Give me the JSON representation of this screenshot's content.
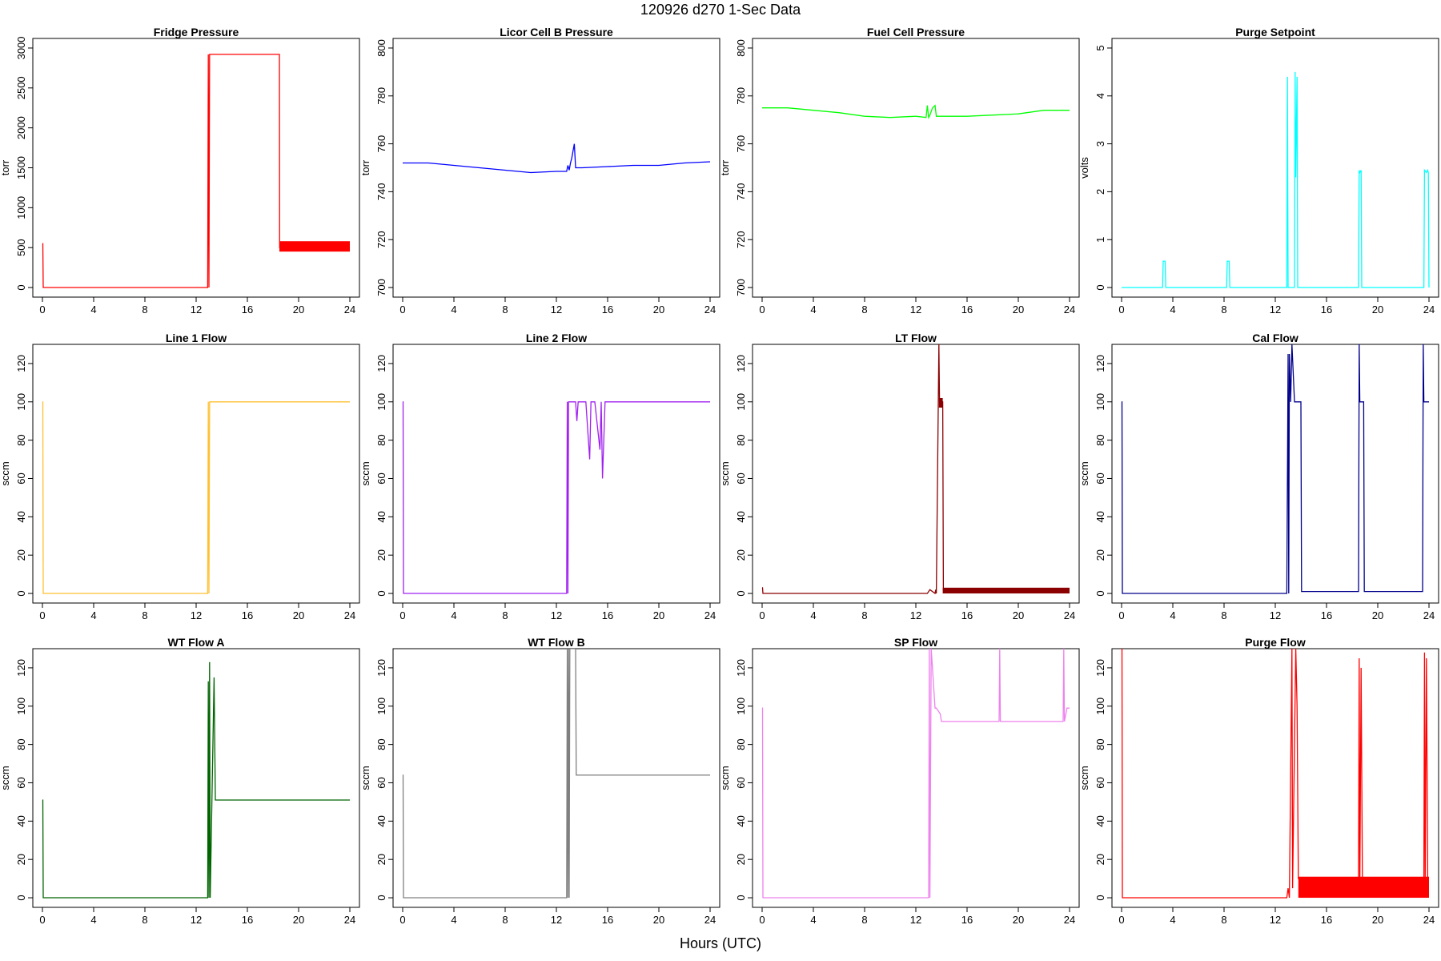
{
  "title": "120926   d270   1-Sec Data",
  "xlabel": "Hours (UTC)",
  "chart_data": [
    {
      "type": "line",
      "title": "Fridge Pressure",
      "ylabel": "torr",
      "color": "#ff0000",
      "xlim": [
        0,
        24
      ],
      "ylim": [
        0,
        3000
      ],
      "yticks": [
        0,
        500,
        1000,
        1500,
        2000,
        2500,
        3000
      ],
      "xticks": [
        0,
        4,
        8,
        12,
        16,
        20,
        24
      ],
      "series": [
        {
          "x": [
            0,
            0.03,
            0.06,
            12.9,
            12.95,
            13.0,
            13.05,
            13.1,
            18.5,
            18.52,
            24
          ],
          "y": [
            550,
            550,
            0,
            0,
            2920,
            0,
            2920,
            2920,
            2920,
            500,
            500
          ]
        }
      ],
      "bands": [
        {
          "x0": 18.5,
          "x1": 24,
          "y0": 450,
          "y1": 580
        }
      ]
    },
    {
      "type": "line",
      "title": "Licor Cell B Pressure",
      "ylabel": "torr",
      "color": "#0000ff",
      "xlim": [
        0,
        24
      ],
      "ylim": [
        700,
        800
      ],
      "yticks": [
        700,
        720,
        740,
        760,
        780,
        800
      ],
      "xticks": [
        0,
        4,
        8,
        12,
        16,
        20,
        24
      ],
      "series": [
        {
          "x": [
            0,
            2,
            4,
            6,
            8,
            10,
            12,
            12.8,
            12.9,
            13.0,
            13.1,
            13.2,
            13.4,
            13.5,
            13.6,
            14,
            16,
            18,
            20,
            22,
            24
          ],
          "y": [
            752,
            752,
            751,
            750,
            749,
            748,
            748.5,
            748.5,
            751,
            749,
            752,
            754,
            760,
            750,
            750,
            750,
            750.5,
            751,
            751,
            752,
            752.5
          ]
        }
      ]
    },
    {
      "type": "line",
      "title": "Fuel Cell Pressure",
      "ylabel": "torr",
      "color": "#00ff00",
      "xlim": [
        0,
        24
      ],
      "ylim": [
        700,
        800
      ],
      "yticks": [
        700,
        720,
        740,
        760,
        780,
        800
      ],
      "xticks": [
        0,
        4,
        8,
        12,
        16,
        20,
        24
      ],
      "series": [
        {
          "x": [
            0,
            2,
            4,
            6,
            8,
            10,
            12,
            12.8,
            12.9,
            13.0,
            13.1,
            13.3,
            13.5,
            13.6,
            14,
            16,
            18,
            20,
            22,
            24
          ],
          "y": [
            775,
            775,
            774,
            773,
            771.5,
            771,
            771.5,
            771,
            776,
            771,
            772,
            775,
            776,
            771.5,
            771.5,
            771.5,
            772,
            772.5,
            774,
            774
          ]
        }
      ]
    },
    {
      "type": "line",
      "title": "Purge Setpoint",
      "ylabel": "volts",
      "color": "#00ffff",
      "xlim": [
        0,
        24
      ],
      "ylim": [
        0,
        5
      ],
      "yticks": [
        0,
        1,
        2,
        3,
        4,
        5
      ],
      "xticks": [
        0,
        4,
        8,
        12,
        16,
        20,
        24
      ],
      "series": [
        {
          "x": [
            0,
            3.2,
            3.25,
            3.4,
            3.45,
            8.2,
            8.25,
            8.4,
            8.45,
            12.9,
            12.95,
            13.0,
            13.5,
            13.55,
            13.6,
            13.7,
            13.75,
            18.5,
            18.55,
            18.6,
            18.7,
            18.75,
            23.6,
            23.65,
            23.8,
            23.9,
            23.95,
            24
          ],
          "y": [
            0,
            0,
            0.55,
            0.55,
            0,
            0,
            0.55,
            0.55,
            0,
            0,
            4.4,
            0,
            0,
            4.5,
            2.3,
            4.4,
            0,
            0,
            2.45,
            2.4,
            2.45,
            0,
            0,
            2.45,
            2.4,
            2.45,
            2.4,
            0
          ]
        }
      ]
    },
    {
      "type": "line",
      "title": "Line 1 Flow",
      "ylabel": "sccm",
      "color": "#ffc030",
      "xlim": [
        0,
        24
      ],
      "ylim": [
        0,
        125
      ],
      "yticks": [
        0,
        20,
        40,
        60,
        80,
        100,
        120
      ],
      "xticks": [
        0,
        4,
        8,
        12,
        16,
        20,
        24
      ],
      "series": [
        {
          "x": [
            0,
            0.03,
            0.06,
            12.9,
            12.95,
            13.0,
            13.05,
            13.1,
            24
          ],
          "y": [
            100,
            100,
            0,
            0,
            100,
            0,
            100,
            100,
            100
          ]
        }
      ]
    },
    {
      "type": "line",
      "title": "Line 2 Flow",
      "ylabel": "sccm",
      "color": "#a020f0",
      "xlim": [
        0,
        24
      ],
      "ylim": [
        0,
        125
      ],
      "yticks": [
        0,
        20,
        40,
        60,
        80,
        100,
        120
      ],
      "xticks": [
        0,
        4,
        8,
        12,
        16,
        20,
        24
      ],
      "series": [
        {
          "x": [
            0,
            0.03,
            0.06,
            12.8,
            12.85,
            12.9,
            12.95,
            13.0,
            13.5,
            13.6,
            13.7,
            14.0,
            14.3,
            14.5,
            14.6,
            14.7,
            15.0,
            15.4,
            15.5,
            15.6,
            15.8,
            16.0,
            24
          ],
          "y": [
            100,
            100,
            0,
            0,
            100,
            0,
            100,
            100,
            100,
            90,
            100,
            100,
            100,
            80,
            70,
            100,
            100,
            75,
            100,
            60,
            100,
            100,
            100
          ]
        }
      ]
    },
    {
      "type": "line",
      "title": "LT Flow",
      "ylabel": "sccm",
      "color": "#8b0000",
      "xlim": [
        0,
        24
      ],
      "ylim": [
        0,
        125
      ],
      "yticks": [
        0,
        20,
        40,
        60,
        80,
        100,
        120
      ],
      "xticks": [
        0,
        4,
        8,
        12,
        16,
        20,
        24
      ],
      "series": [
        {
          "x": [
            0,
            0.03,
            0.06,
            12.9,
            13.1,
            13.5,
            13.55,
            13.6,
            13.8,
            13.85,
            14.0,
            14.1,
            14.15,
            24
          ],
          "y": [
            3,
            3,
            0,
            0,
            2,
            0,
            2,
            0,
            130,
            100,
            100,
            100,
            2,
            2
          ]
        }
      ],
      "bands": [
        {
          "x0": 14.1,
          "x1": 24,
          "y0": 0,
          "y1": 3
        },
        {
          "x0": 13.8,
          "x1": 14.1,
          "y0": 97,
          "y1": 102
        }
      ]
    },
    {
      "type": "line",
      "title": "Cal Flow",
      "ylabel": "sccm",
      "color": "#00008b",
      "xlim": [
        0,
        24
      ],
      "ylim": [
        0,
        125
      ],
      "yticks": [
        0,
        20,
        40,
        60,
        80,
        100,
        120
      ],
      "xticks": [
        0,
        4,
        8,
        12,
        16,
        20,
        24
      ],
      "series": [
        {
          "x": [
            0,
            0.03,
            0.06,
            12.9,
            13.0,
            13.05,
            13.1,
            13.2,
            13.3,
            13.5,
            14.0,
            14.05,
            18.5,
            18.55,
            18.6,
            18.9,
            18.95,
            23.5,
            23.55,
            23.6,
            24
          ],
          "y": [
            100,
            100,
            0,
            0,
            125,
            0,
            125,
            100,
            130,
            100,
            100,
            1,
            1,
            130,
            100,
            100,
            1,
            1,
            130,
            100,
            100
          ]
        }
      ]
    },
    {
      "type": "line",
      "title": "WT Flow A",
      "ylabel": "sccm",
      "color": "#006400",
      "xlim": [
        0,
        24
      ],
      "ylim": [
        0,
        125
      ],
      "yticks": [
        0,
        20,
        40,
        60,
        80,
        100,
        120
      ],
      "xticks": [
        0,
        4,
        8,
        12,
        16,
        20,
        24
      ],
      "series": [
        {
          "x": [
            0,
            0.03,
            0.06,
            12.9,
            12.95,
            13.0,
            13.05,
            13.1,
            13.4,
            13.5,
            13.55,
            24
          ],
          "y": [
            51,
            51,
            0,
            0,
            113,
            0,
            123,
            0,
            115,
            51,
            51,
            51
          ]
        }
      ]
    },
    {
      "type": "line",
      "title": "WT Flow B",
      "ylabel": "sccm",
      "color": "#808080",
      "xlim": [
        0,
        24
      ],
      "ylim": [
        0,
        125
      ],
      "yticks": [
        0,
        20,
        40,
        60,
        80,
        100,
        120
      ],
      "xticks": [
        0,
        4,
        8,
        12,
        16,
        20,
        24
      ],
      "series": [
        {
          "x": [
            0,
            0.03,
            0.06,
            12.8,
            12.85,
            12.9,
            12.95,
            13.0,
            13.05,
            13.5,
            13.55,
            24
          ],
          "y": [
            64,
            64,
            0,
            0,
            130,
            0,
            130,
            0,
            130,
            130,
            64,
            64
          ]
        }
      ]
    },
    {
      "type": "line",
      "title": "SP Flow",
      "ylabel": "sccm",
      "color": "#ee82ee",
      "xlim": [
        0,
        24
      ],
      "ylim": [
        0,
        125
      ],
      "yticks": [
        0,
        20,
        40,
        60,
        80,
        100,
        120
      ],
      "xticks": [
        0,
        4,
        8,
        12,
        16,
        20,
        24
      ],
      "series": [
        {
          "x": [
            0,
            0.03,
            0.06,
            12.9,
            13.0,
            13.05,
            13.1,
            13.2,
            13.5,
            13.6,
            13.9,
            14.0,
            18.5,
            18.55,
            18.6,
            18.9,
            19.0,
            23.5,
            23.55,
            23.6,
            23.8,
            24
          ],
          "y": [
            99,
            99,
            0,
            0,
            0,
            130,
            0,
            130,
            99,
            99,
            96,
            92,
            92,
            130,
            92,
            92,
            92,
            92,
            130,
            92,
            99,
            99
          ]
        }
      ]
    },
    {
      "type": "line",
      "title": "Purge Flow",
      "ylabel": "sccm",
      "color": "#ff0000",
      "xlim": [
        0,
        24
      ],
      "ylim": [
        0,
        125
      ],
      "yticks": [
        0,
        20,
        40,
        60,
        80,
        100,
        120
      ],
      "xticks": [
        0,
        4,
        8,
        12,
        16,
        20,
        24
      ],
      "series": [
        {
          "x": [
            0,
            0.03,
            0.06,
            12.9,
            13.0,
            13.1,
            13.3,
            13.35,
            13.6,
            13.7,
            13.8,
            14.0,
            18.5,
            18.55,
            18.6,
            18.7,
            18.8,
            23.6,
            23.65,
            23.7,
            23.8,
            23.9,
            24
          ],
          "y": [
            130,
            130,
            0,
            0,
            5,
            0,
            130,
            5,
            130,
            100,
            10,
            10,
            10,
            125,
            5,
            120,
            10,
            10,
            128,
            5,
            125,
            10,
            10
          ]
        }
      ],
      "bands": [
        {
          "x0": 13.8,
          "x1": 24,
          "y0": 0,
          "y1": 11
        }
      ]
    }
  ]
}
